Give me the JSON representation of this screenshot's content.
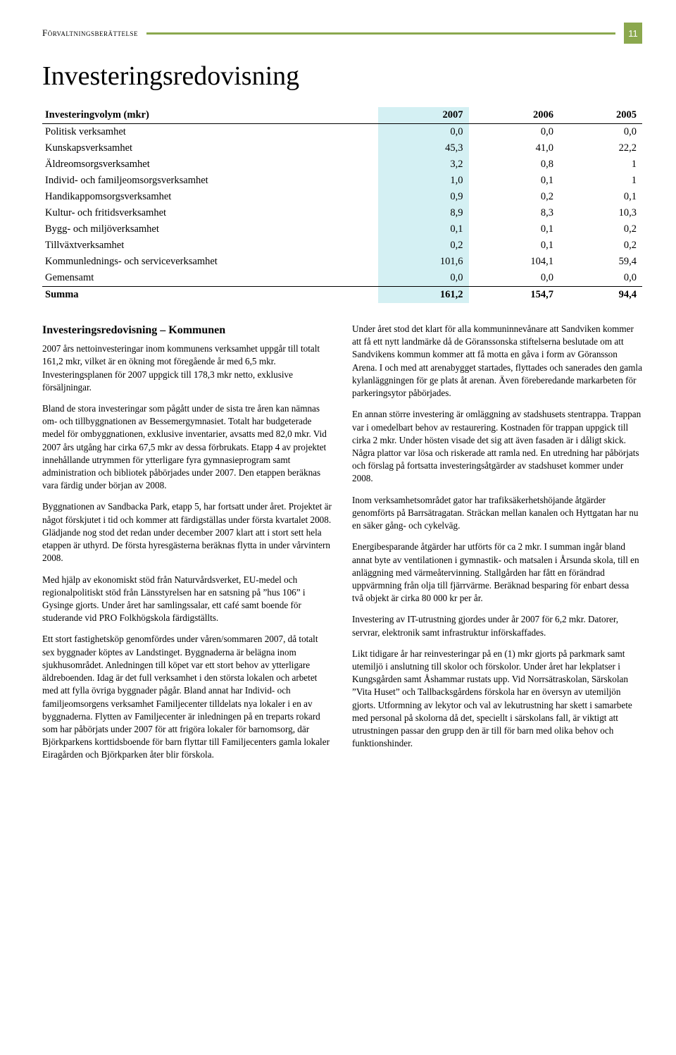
{
  "header": {
    "section_label": "Förvaltningsberättelse",
    "page_number": "11",
    "rule_color": "#8ba84e",
    "badge_bg": "#8ba84e",
    "badge_fg": "#ffffff"
  },
  "title": "Investeringsredovisning",
  "table": {
    "highlight_color": "#d4f0f3",
    "head": [
      "Investeringvolym (mkr)",
      "2007",
      "2006",
      "2005"
    ],
    "rows": [
      [
        "Politisk verksamhet",
        "0,0",
        "0,0",
        "0,0"
      ],
      [
        "Kunskapsverksamhet",
        "45,3",
        "41,0",
        "22,2"
      ],
      [
        "Äldreomsorgsverksamhet",
        "3,2",
        "0,8",
        "1"
      ],
      [
        "Individ- och familjeomsorgsverksamhet",
        "1,0",
        "0,1",
        "1"
      ],
      [
        "Handikappomsorgsverksamhet",
        "0,9",
        "0,2",
        "0,1"
      ],
      [
        "Kultur- och fritidsverksamhet",
        "8,9",
        "8,3",
        "10,3"
      ],
      [
        "Bygg- och miljöverksamhet",
        "0,1",
        "0,1",
        "0,2"
      ],
      [
        "Tillväxtverksamhet",
        "0,2",
        "0,1",
        "0,2"
      ],
      [
        "Kommunlednings- och serviceverksamhet",
        "101,6",
        "104,1",
        "59,4"
      ],
      [
        "Gemensamt",
        "0,0",
        "0,0",
        "0,0"
      ]
    ],
    "summa": [
      "Summa",
      "161,2",
      "154,7",
      "94,4"
    ]
  },
  "body": {
    "subtitle": "Investeringsredovisning – Kommunen",
    "paragraphs": [
      "2007 års nettoinvesteringar inom kommunens verksamhet uppgår till totalt 161,2 mkr, vilket är en ökning mot föregående år med 6,5 mkr. Investeringsplanen för 2007 uppgick till 178,3 mkr netto, exklusive försäljningar.",
      "Bland de stora investeringar som pågått under de sista tre åren kan nämnas om- och tillbyggnationen av Bessemergymnasiet. Totalt har budgeterade medel för ombyggnationen, exklusive inventarier, avsatts med 82,0 mkr. Vid 2007 års utgång har cirka 67,5 mkr av dessa förbrukats. Etapp 4 av projektet innehållande utrymmen för ytterligare fyra gymnasieprogram samt administration och bibliotek påbörjades under 2007. Den etappen beräknas vara färdig under början av 2008.",
      "Byggnationen av Sandbacka Park, etapp 5, har fortsatt under året. Projektet är något förskjutet i tid och kommer att färdigställas under första kvartalet 2008. Glädjande nog stod det redan under december 2007 klart att i stort sett hela etappen är uthyrd. De första hyresgästerna beräknas flytta in under vårvintern 2008.",
      "Med hjälp av ekonomiskt stöd från Naturvårdsverket, EU-medel och regionalpolitiskt stöd från Länsstyrelsen har en satsning på ”hus 106” i Gysinge gjorts. Under året har samlingssalar, ett café samt boende för studerande vid PRO Folkhögskola färdigställts.",
      "Ett stort fastighetsköp genomfördes under våren/sommaren 2007, då totalt sex byggnader köptes av Landstinget. Byggnaderna är belägna inom sjukhusområdet. Anledningen till köpet var ett stort behov av ytterligare äldreboenden. Idag är det full verksamhet i den största lokalen och arbetet med att fylla övriga byggnader pågår. Bland annat har Individ- och familjeomsorgens verksamhet Familjecenter tilldelats nya lokaler i en av byggnaderna. Flytten av Familjecenter är inledningen på en treparts rokard som har påbörjats under 2007 för att frigöra lokaler för barnomsorg, där Björkparkens korttidsboende för barn flyttar till Familjecenters gamla lokaler Eiragården och Björkparken åter blir förskola.",
      "Under året stod det klart för alla kommuninnevånare att Sandviken kommer att få ett nytt landmärke då de Göranssonska stiftelserna beslutade om att Sandvikens kommun kommer att få motta en gåva i form av Göransson Arena. I och med att arenabygget startades, flyttades och sanerades den gamla kylanläggningen för ge plats åt arenan. Även föreberedande markarbeten för parkeringsytor påbörjades.",
      "En annan större investering är omläggning av stadshusets stentrappa. Trappan var i omedelbart behov av restaurering. Kostnaden för trappan uppgick till cirka 2 mkr. Under hösten visade det sig att även fasaden är i dåligt skick. Några plattor var lösa och riskerade att ramla ned. En utredning har påbörjats och förslag på fortsatta investeringsåtgärder av stadshuset kommer under 2008.",
      "Inom verksamhetsområdet gator har trafiksäkerhetshöjande åtgärder genomförts på Barrsätragatan. Sträckan mellan kanalen och Hyttgatan har nu en säker gång- och cykelväg.",
      "Energibesparande åtgärder har utförts för ca 2 mkr. I summan ingår bland annat byte av ventilationen i gymnastik- och matsalen i Årsunda skola, till en anläggning med värmeåtervinning. Stallgården har fått en förändrad uppvärmning från olja till fjärrvärme. Beräknad besparing för enbart dessa två objekt är cirka 80 000 kr per år.",
      "Investering av IT-utrustning gjordes under år 2007 för 6,2 mkr. Datorer, servrar, elektronik samt infrastruktur införskaffades.",
      "Likt tidigare år har reinvesteringar på en (1) mkr gjorts på parkmark samt utemiljö i anslutning till skolor och förskolor. Under året har lekplatser i Kungsgården samt Åshammar rustats upp. Vid Norrsätraskolan, Särskolan ”Vita Huset” och Tallbacksgårdens förskola har en översyn av utemiljön gjorts. Utformning av lekytor och val av lekutrustning har skett i samarbete med personal på skolorna då det, speciellt i särskolans fall, är viktigt att utrustningen passar den grupp den är till för barn med olika behov och funktionshinder."
    ]
  }
}
